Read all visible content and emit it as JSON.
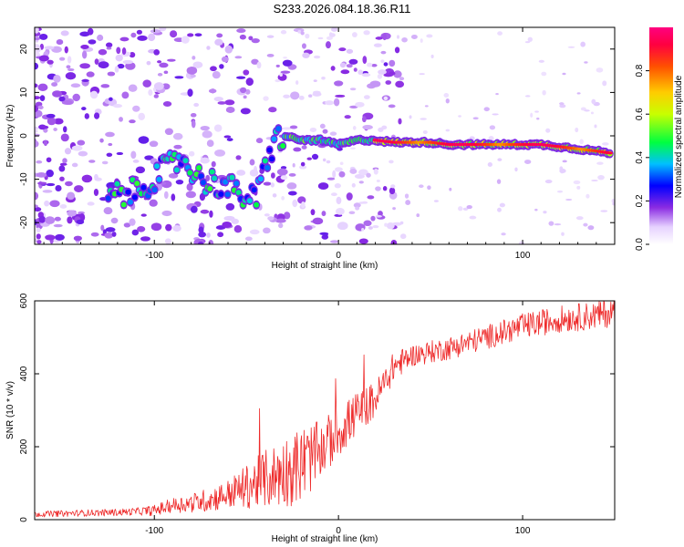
{
  "title": "S233.2026.084.18.36.R11",
  "colors": {
    "snr_line": "#ee2a2a",
    "axis": "#000000",
    "background": "#ffffff"
  },
  "chart_data": [
    {
      "type": "heatmap",
      "name": "spectrogram",
      "xlabel": "Height of straight line (km)",
      "ylabel": "Frequency (Hz)",
      "xlim": [
        -165,
        150
      ],
      "ylim": [
        -25,
        25
      ],
      "xticks": [
        -100,
        0,
        100
      ],
      "xtick_labels": [
        "-100",
        "0",
        "100"
      ],
      "yticks": [
        -20,
        -10,
        0,
        10,
        20
      ],
      "ytick_labels": [
        "-20",
        "-10",
        "0",
        "10",
        "20"
      ],
      "ridge": {
        "x": [
          -125,
          -110,
          -95,
          -85,
          -75,
          -65,
          -55,
          -45,
          -40,
          -35,
          -30,
          -20,
          -10,
          0,
          10,
          20,
          30,
          40,
          50,
          60,
          70,
          80,
          90,
          100,
          110,
          120,
          130,
          140,
          148
        ],
        "y": [
          -14,
          -13,
          -8,
          -5,
          -10,
          -11,
          -13,
          -15,
          -8,
          -1,
          0,
          -1,
          -1,
          -2,
          -1,
          -1,
          -1.5,
          -1.5,
          -1.5,
          -2,
          -2,
          -2,
          -2,
          -2,
          -2,
          -2.5,
          -3,
          -3.5,
          -4
        ]
      }
    },
    {
      "type": "colorbar",
      "name": "amplitude-scale",
      "label": "Normalized spectral amplitude",
      "range": [
        0,
        1
      ],
      "ticks": [
        0.0,
        0.2,
        0.4,
        0.6,
        0.8
      ],
      "tick_labels": [
        "0.0",
        "0.2",
        "0.4",
        "0.6",
        "0.8"
      ]
    },
    {
      "type": "line",
      "name": "snr",
      "xlabel": "Height of straight line (km)",
      "ylabel": "SNR (10 * v/v)",
      "xlim": [
        -165,
        150
      ],
      "ylim": [
        0,
        600
      ],
      "xticks": [
        -100,
        0,
        100
      ],
      "xtick_labels": [
        "-100",
        "0",
        "100"
      ],
      "yticks": [
        0,
        200,
        400,
        600
      ],
      "ytick_labels": [
        "0",
        "200",
        "400",
        "600"
      ],
      "trend": {
        "x": [
          -165,
          -140,
          -120,
          -100,
          -90,
          -80,
          -70,
          -60,
          -50,
          -40,
          -30,
          -20,
          -10,
          0,
          10,
          20,
          30,
          40,
          60,
          80,
          100,
          120,
          140,
          150
        ],
        "y": [
          15,
          18,
          20,
          25,
          40,
          45,
          55,
          70,
          90,
          110,
          130,
          150,
          190,
          240,
          290,
          330,
          420,
          450,
          470,
          500,
          530,
          550,
          560,
          570
        ]
      },
      "noise_amplitude": {
        "x": [
          -165,
          -110,
          -90,
          -60,
          -40,
          -20,
          -10,
          0,
          20,
          40,
          100,
          150
        ],
        "y": [
          8,
          10,
          20,
          40,
          80,
          110,
          80,
          70,
          50,
          30,
          35,
          40
        ]
      }
    }
  ]
}
